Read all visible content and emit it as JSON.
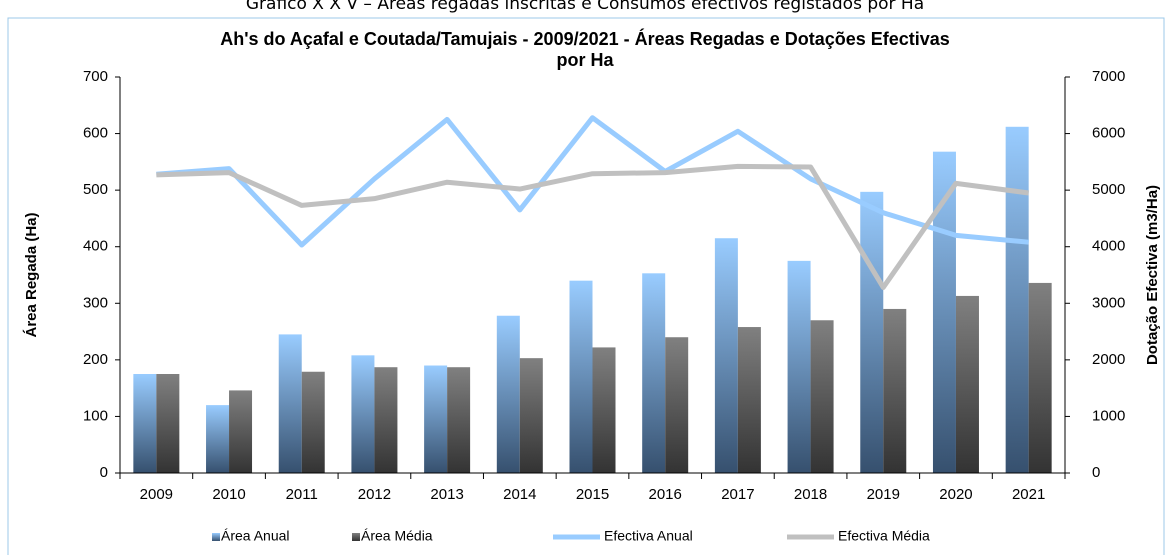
{
  "caption": "Gráfico X X V – Áreas regadas inscritas e Consumos efectivos registados por Ha",
  "chart_data": {
    "type": "bar-line",
    "title": [
      "Ah's do Açafal e Coutada/Tamujais - 2009/2021 - Áreas Regadas e Dotações Efectivas",
      "por Ha"
    ],
    "ylabel": "Área Regada (Ha)",
    "y2label": "Dotação Efectiva (m3/Ha)",
    "categories": [
      "2009",
      "2010",
      "2011",
      "2012",
      "2013",
      "2014",
      "2015",
      "2016",
      "2017",
      "2018",
      "2019",
      "2020",
      "2021"
    ],
    "series": [
      {
        "name": "Área Anual",
        "type": "bar",
        "color": "#99ccff",
        "values": [
          175,
          120,
          245,
          208,
          190,
          278,
          340,
          353,
          415,
          375,
          497,
          568,
          612
        ]
      },
      {
        "name": "Área Média",
        "type": "bar",
        "color": "#808080",
        "values": [
          175,
          146,
          179,
          187,
          187,
          203,
          222,
          240,
          258,
          270,
          290,
          313,
          336
        ]
      },
      {
        "name": "Efectiva Anual",
        "type": "line",
        "axis": "y2",
        "color": "#99ccff",
        "values": [
          5280,
          5380,
          4030,
          5200,
          6250,
          4650,
          6280,
          5330,
          6040,
          5200,
          4600,
          4200,
          4080
        ]
      },
      {
        "name": "Efectiva Média",
        "type": "line",
        "axis": "y2",
        "color": "#c0c0c0",
        "values": [
          5270,
          5310,
          4730,
          4850,
          5140,
          5020,
          5290,
          5310,
          5420,
          5410,
          3280,
          5120,
          4950
        ]
      }
    ],
    "ylim": [
      0,
      700
    ],
    "yticks": [
      0,
      100,
      200,
      300,
      400,
      500,
      600,
      700
    ],
    "y2lim": [
      0,
      7000
    ],
    "y2ticks": [
      0,
      1000,
      2000,
      3000,
      4000,
      5000,
      6000,
      7000
    ],
    "legend": "bottom"
  }
}
